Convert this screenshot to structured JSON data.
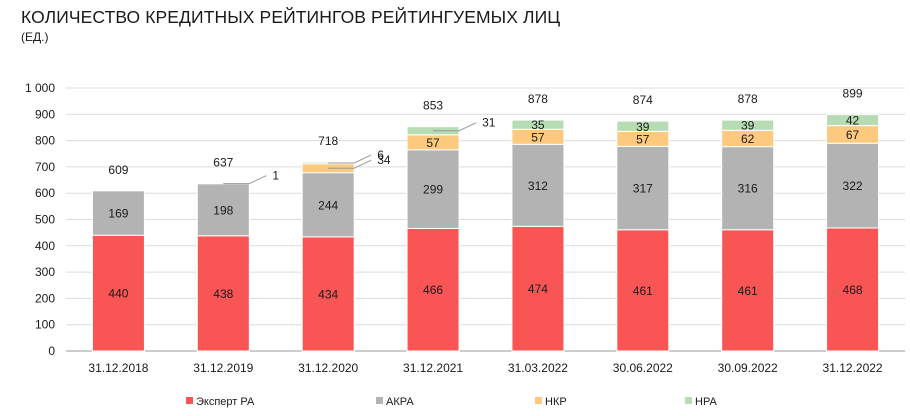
{
  "chart_data": {
    "type": "bar",
    "stacked": true,
    "title": "КОЛИЧЕСТВО КРЕДИТНЫХ РЕЙТИНГОВ РЕЙТИНГУЕМЫХ ЛИЦ",
    "subtitle": "(ЕД.)",
    "categories": [
      "31.12.2018",
      "31.12.2019",
      "31.12.2020",
      "31.12.2021",
      "31.03.2022",
      "30.06.2022",
      "30.09.2022",
      "31.12.2022"
    ],
    "series": [
      {
        "name": "Эксперт РА",
        "color": "#f95555",
        "values": [
          440,
          438,
          434,
          466,
          474,
          461,
          461,
          468
        ]
      },
      {
        "name": "АКРА",
        "color": "#b3b3b3",
        "values": [
          169,
          198,
          244,
          299,
          312,
          317,
          316,
          322
        ]
      },
      {
        "name": "НКР",
        "color": "#fcc97f",
        "values": [
          0,
          1,
          34,
          57,
          57,
          57,
          62,
          67
        ]
      },
      {
        "name": "НРА",
        "color": "#b7dcb4",
        "values": [
          0,
          0,
          6,
          31,
          35,
          39,
          39,
          42
        ]
      }
    ],
    "segment_labels": [
      [
        "440",
        "169",
        "",
        ""
      ],
      [
        "438",
        "198",
        "1",
        ""
      ],
      [
        "434",
        "244",
        "34",
        "6"
      ],
      [
        "466",
        "299",
        "57",
        "31"
      ],
      [
        "474",
        "312",
        "57",
        "35"
      ],
      [
        "461",
        "317",
        "57",
        "39"
      ],
      [
        "461",
        "316",
        "62",
        "39"
      ],
      [
        "468",
        "322",
        "67",
        "42"
      ]
    ],
    "totals": [
      "609",
      "637",
      "718",
      "853",
      "878",
      "874",
      "878",
      "899"
    ],
    "ylim": [
      0,
      1000
    ],
    "yticks": [
      "0",
      "100",
      "200",
      "300",
      "400",
      "500",
      "600",
      "700",
      "800",
      "900",
      "1 000"
    ],
    "grid": true,
    "legend_position": "bottom"
  }
}
